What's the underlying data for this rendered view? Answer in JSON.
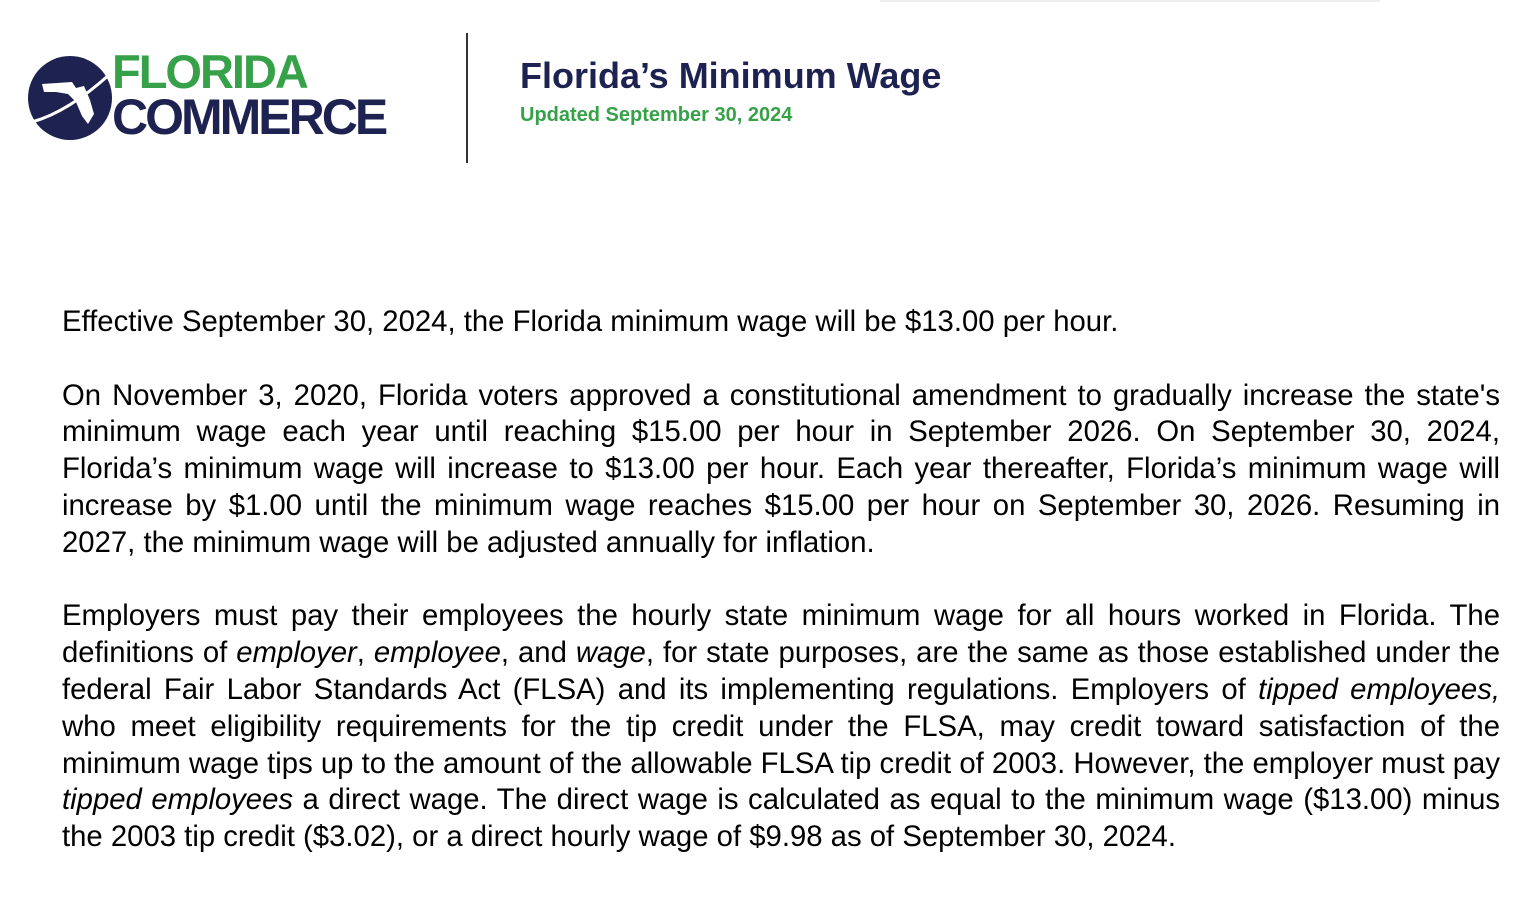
{
  "header": {
    "logo_text": [
      "FLORIDA",
      "COMMERCE"
    ],
    "title": "Florida’s Minimum Wage",
    "updated": "Updated September 30, 2024",
    "colors": {
      "navy": "#1d2250",
      "green": "#36a149"
    }
  },
  "body": {
    "p1": "Effective September 30, 2024, the Florida minimum wage will be $13.00 per hour.",
    "p2": "On November 3, 2020, Florida voters approved a constitutional amendment to gradually increase the state's minimum wage each year until reaching $15.00 per hour in September 2026. On September 30, 2024, Florida’s minimum wage will increase to $13.00 per hour. Each year thereafter, Florida’s minimum wage will increase by $1.00 until the minimum wage reaches $15.00 per hour on September 30, 2026. Resuming in 2027, the minimum wage will be adjusted annually for inflation.",
    "p3": [
      "Employers must pay their employees the hourly state minimum wage for all hours worked in Florida. The definitions of ",
      "employer",
      ", ",
      "employee",
      ", and ",
      "wage",
      ", for state purposes, are the same as those established under the federal Fair Labor Standards Act (FLSA) and its implementing regulations. Employers of ",
      "tipped employees,",
      " who meet eligibility requirements for the tip credit under the FLSA, may credit toward satisfaction of the minimum wage tips up to the amount of the allowable FLSA tip credit of 2003.  However, the employer must pay ",
      "tipped employees",
      " a direct wage.  The direct wage is calculated as equal to the minimum wage ($13.00) minus the 2003 tip credit ($3.02), or a direct hourly wage of $9.98 as of September 30, 2024."
    ]
  }
}
